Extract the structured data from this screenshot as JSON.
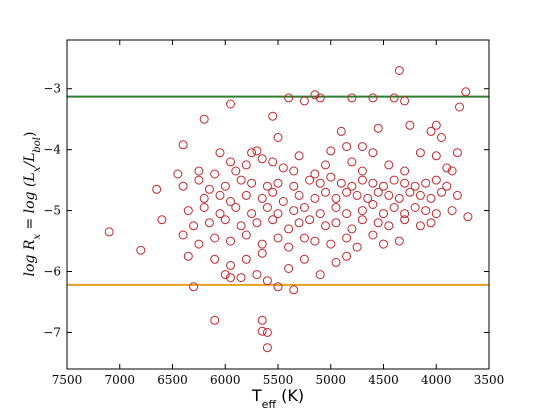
{
  "chart_data": {
    "type": "scatter",
    "title": "",
    "xlabel": {
      "main": "T",
      "sub": "eff",
      "unit": " (K)"
    },
    "ylabel": {
      "lhs": "log R",
      "lhs_sub": "x",
      "eq": " = ",
      "rhs_pre": "log (L",
      "rhs_sub1": "x",
      "rhs_mid": "/L",
      "rhs_sub2": "bol",
      "rhs_post": ")"
    },
    "xlim": [
      7500,
      3500
    ],
    "ylim": [
      -7.6,
      -2.2
    ],
    "x_reversed": true,
    "grid": false,
    "x_ticks": [
      7500,
      7000,
      6500,
      6000,
      5500,
      5000,
      4500,
      4000,
      3500
    ],
    "x_tick_labels": [
      "7500",
      "7000",
      "6500",
      "6000",
      "5500",
      "5000",
      "4500",
      "4000",
      "3500"
    ],
    "y_ticks": [
      -7,
      -6,
      -5,
      -4,
      -3
    ],
    "y_tick_labels": [
      "−7",
      "−6",
      "−5",
      "−4",
      "−3"
    ],
    "hlines": [
      {
        "y": -3.13,
        "color": "#2e7d32"
      },
      {
        "y": -6.22,
        "color": "#e6a020"
      }
    ],
    "marker": {
      "shape": "open-circle",
      "color": "#c0282d"
    },
    "points": [
      [
        4350,
        -2.7
      ],
      [
        3720,
        -3.05
      ],
      [
        5150,
        -3.1
      ],
      [
        5100,
        -3.15
      ],
      [
        4800,
        -3.15
      ],
      [
        4600,
        -3.15
      ],
      [
        4400,
        -3.15
      ],
      [
        5400,
        -3.15
      ],
      [
        5250,
        -3.2
      ],
      [
        4300,
        -3.2
      ],
      [
        3780,
        -3.3
      ],
      [
        5950,
        -3.25
      ],
      [
        5550,
        -3.45
      ],
      [
        6200,
        -3.5
      ],
      [
        4000,
        -3.6
      ],
      [
        4250,
        -3.6
      ],
      [
        4550,
        -3.65
      ],
      [
        4900,
        -3.7
      ],
      [
        5500,
        -3.8
      ],
      [
        4050,
        -3.7
      ],
      [
        3950,
        -3.8
      ],
      [
        6400,
        -3.92
      ],
      [
        6050,
        -4.05
      ],
      [
        5750,
        -4.05
      ],
      [
        5700,
        -4.02
      ],
      [
        5000,
        -4.02
      ],
      [
        4700,
        -3.95
      ],
      [
        4850,
        -3.95
      ],
      [
        4600,
        -4.05
      ],
      [
        4150,
        -4.05
      ],
      [
        3800,
        -4.05
      ],
      [
        5550,
        -4.2
      ],
      [
        5300,
        -4.1
      ],
      [
        4000,
        -4.1
      ],
      [
        5950,
        -4.2
      ],
      [
        5800,
        -4.25
      ],
      [
        5650,
        -4.15
      ],
      [
        5450,
        -4.3
      ],
      [
        5050,
        -4.25
      ],
      [
        4800,
        -4.2
      ],
      [
        4450,
        -4.25
      ],
      [
        4300,
        -4.35
      ],
      [
        6250,
        -4.35
      ],
      [
        6100,
        -4.4
      ],
      [
        5900,
        -4.35
      ],
      [
        5350,
        -4.35
      ],
      [
        5150,
        -4.4
      ],
      [
        4700,
        -4.35
      ],
      [
        3900,
        -4.3
      ],
      [
        3850,
        -4.35
      ],
      [
        6650,
        -4.65
      ],
      [
        6450,
        -4.4
      ],
      [
        6400,
        -4.6
      ],
      [
        6250,
        -4.5
      ],
      [
        6150,
        -4.65
      ],
      [
        6000,
        -4.6
      ],
      [
        5850,
        -4.5
      ],
      [
        5750,
        -4.55
      ],
      [
        5600,
        -4.6
      ],
      [
        5500,
        -4.55
      ],
      [
        5350,
        -4.6
      ],
      [
        5200,
        -4.5
      ],
      [
        5100,
        -4.55
      ],
      [
        5000,
        -4.45
      ],
      [
        4900,
        -4.55
      ],
      [
        4800,
        -4.6
      ],
      [
        4700,
        -4.5
      ],
      [
        4600,
        -4.55
      ],
      [
        4500,
        -4.6
      ],
      [
        4400,
        -4.5
      ],
      [
        4300,
        -4.55
      ],
      [
        4200,
        -4.6
      ],
      [
        4100,
        -4.55
      ],
      [
        4000,
        -4.5
      ],
      [
        3900,
        -4.6
      ],
      [
        6200,
        -4.8
      ],
      [
        6050,
        -4.75
      ],
      [
        5950,
        -4.85
      ],
      [
        5800,
        -4.75
      ],
      [
        5650,
        -4.8
      ],
      [
        5550,
        -4.7
      ],
      [
        5450,
        -4.85
      ],
      [
        5300,
        -4.75
      ],
      [
        5150,
        -4.8
      ],
      [
        5050,
        -4.7
      ],
      [
        4950,
        -4.8
      ],
      [
        4850,
        -4.7
      ],
      [
        4750,
        -4.75
      ],
      [
        4650,
        -4.8
      ],
      [
        4550,
        -4.7
      ],
      [
        4450,
        -4.75
      ],
      [
        4350,
        -4.8
      ],
      [
        4250,
        -4.7
      ],
      [
        4150,
        -4.75
      ],
      [
        4050,
        -4.8
      ],
      [
        3950,
        -4.7
      ],
      [
        3800,
        -4.75
      ],
      [
        6350,
        -5.0
      ],
      [
        6200,
        -4.95
      ],
      [
        6050,
        -5.05
      ],
      [
        5900,
        -4.95
      ],
      [
        5750,
        -5.05
      ],
      [
        5600,
        -4.95
      ],
      [
        5500,
        -5.05
      ],
      [
        5350,
        -5.0
      ],
      [
        5250,
        -4.95
      ],
      [
        5100,
        -5.05
      ],
      [
        4950,
        -4.95
      ],
      [
        4850,
        -5.05
      ],
      [
        4700,
        -5.0
      ],
      [
        4600,
        -4.9
      ],
      [
        4500,
        -5.05
      ],
      [
        4400,
        -4.95
      ],
      [
        4300,
        -5.05
      ],
      [
        4200,
        -4.95
      ],
      [
        4100,
        -5.0
      ],
      [
        4000,
        -5.05
      ],
      [
        3850,
        -5.0
      ],
      [
        7100,
        -5.35
      ],
      [
        6600,
        -5.15
      ],
      [
        6300,
        -5.25
      ],
      [
        6150,
        -5.2
      ],
      [
        6000,
        -5.15
      ],
      [
        5850,
        -5.25
      ],
      [
        5700,
        -5.2
      ],
      [
        5550,
        -5.15
      ],
      [
        5400,
        -5.3
      ],
      [
        5300,
        -5.2
      ],
      [
        5200,
        -5.15
      ],
      [
        5050,
        -5.25
      ],
      [
        4950,
        -5.2
      ],
      [
        4800,
        -5.3
      ],
      [
        4700,
        -5.15
      ],
      [
        4550,
        -5.2
      ],
      [
        4450,
        -5.25
      ],
      [
        4300,
        -5.15
      ],
      [
        4150,
        -5.25
      ],
      [
        4050,
        -5.2
      ],
      [
        3700,
        -5.1
      ],
      [
        6800,
        -5.65
      ],
      [
        6400,
        -5.4
      ],
      [
        6250,
        -5.55
      ],
      [
        6100,
        -5.45
      ],
      [
        5950,
        -5.5
      ],
      [
        5800,
        -5.4
      ],
      [
        5650,
        -5.55
      ],
      [
        5500,
        -5.45
      ],
      [
        5400,
        -5.6
      ],
      [
        5250,
        -5.45
      ],
      [
        5150,
        -5.5
      ],
      [
        5000,
        -5.55
      ],
      [
        4850,
        -5.45
      ],
      [
        4750,
        -5.6
      ],
      [
        4600,
        -5.4
      ],
      [
        4500,
        -5.55
      ],
      [
        4350,
        -5.5
      ],
      [
        6350,
        -5.75
      ],
      [
        6100,
        -5.8
      ],
      [
        5950,
        -5.9
      ],
      [
        5800,
        -5.8
      ],
      [
        5650,
        -5.7
      ],
      [
        5400,
        -5.95
      ],
      [
        5250,
        -5.8
      ],
      [
        4950,
        -5.85
      ],
      [
        4850,
        -5.75
      ],
      [
        6000,
        -6.05
      ],
      [
        5950,
        -6.1
      ],
      [
        5850,
        -6.1
      ],
      [
        5700,
        -6.05
      ],
      [
        5600,
        -6.15
      ],
      [
        5100,
        -6.05
      ],
      [
        6300,
        -6.25
      ],
      [
        5500,
        -6.25
      ],
      [
        5350,
        -6.3
      ],
      [
        6100,
        -6.8
      ],
      [
        5650,
        -6.8
      ],
      [
        5650,
        -6.98
      ],
      [
        5600,
        -7.0
      ],
      [
        5600,
        -7.25
      ]
    ]
  }
}
